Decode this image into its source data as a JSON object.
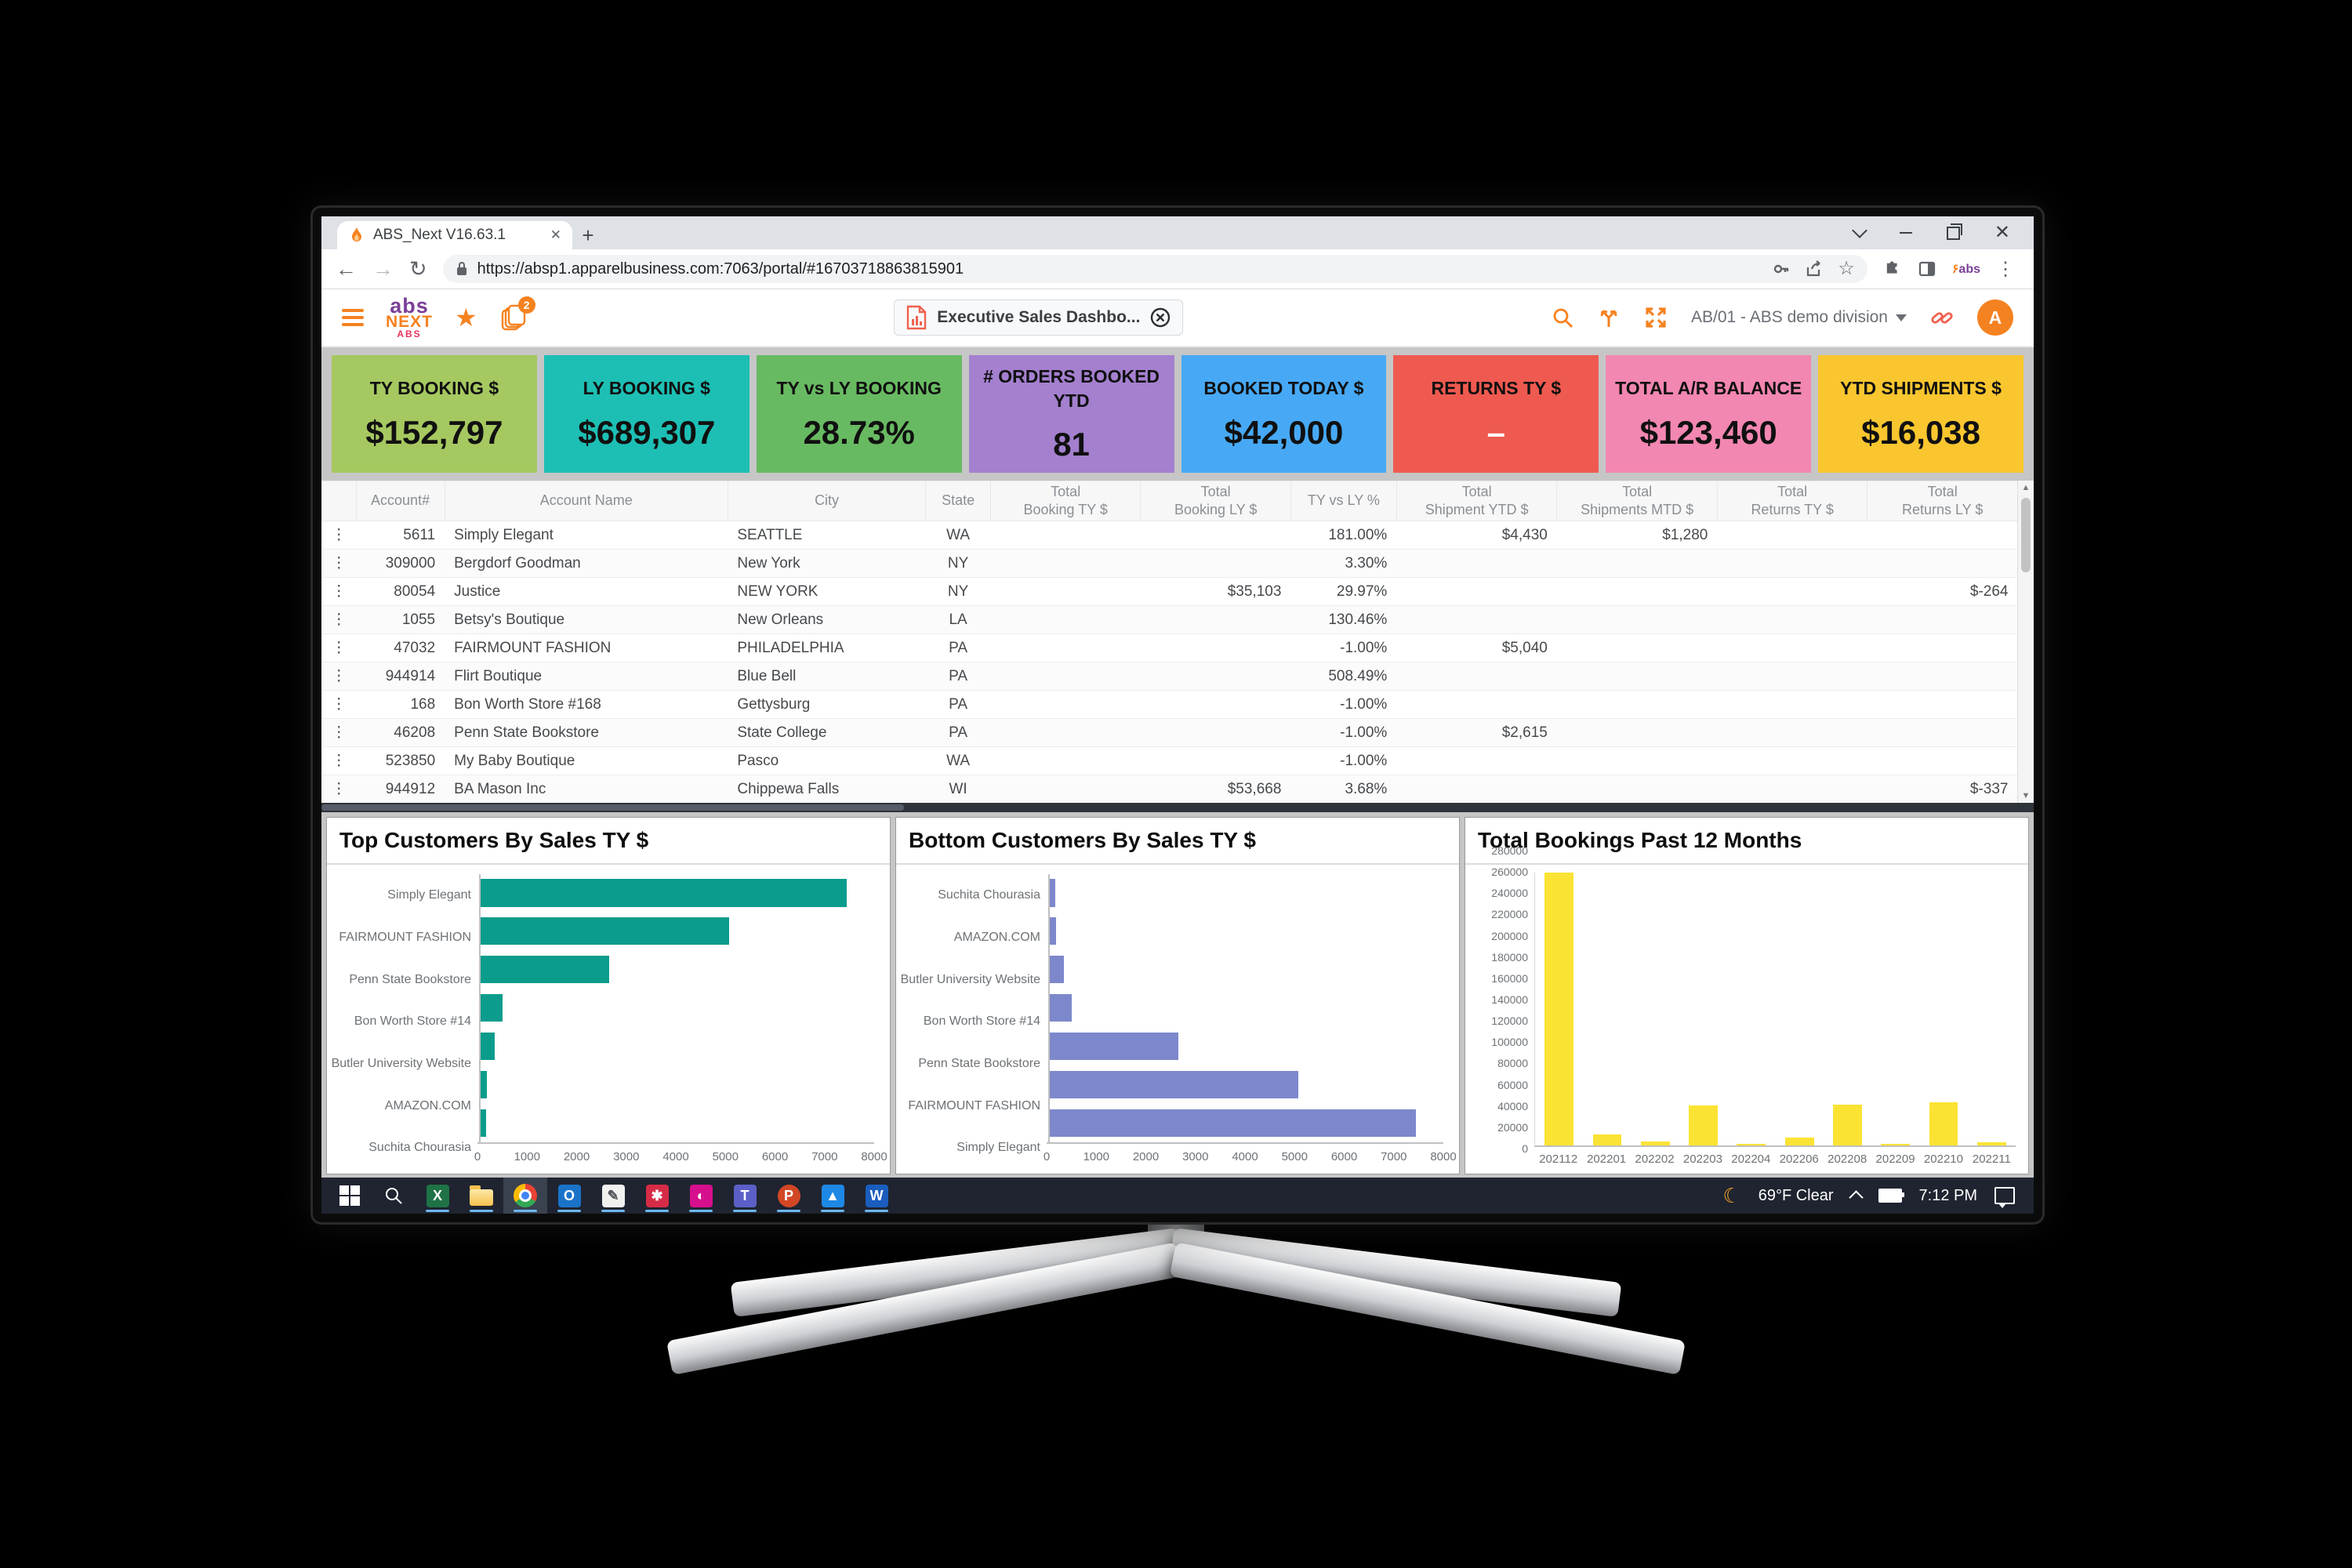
{
  "browser": {
    "tab_title": "ABS_Next V16.63.1",
    "url": "https://absp1.apparelbusiness.com:7063/portal/#16703718863815901"
  },
  "header": {
    "notification_badge": "2",
    "dashboard_chip_label": "Executive Sales Dashbo...",
    "division_selector": "AB/01 - ABS demo division",
    "avatar_initial": "A"
  },
  "kpis": [
    {
      "label": "TY BOOKING $",
      "value": "$152,797",
      "color": "#a6c860"
    },
    {
      "label": "LY BOOKING $",
      "value": "$689,307",
      "color": "#1dbfb4"
    },
    {
      "label": "TY vs LY BOOKING",
      "value": "28.73%",
      "color": "#68ba62"
    },
    {
      "label": "# ORDERS BOOKED\nYTD",
      "value": "81",
      "color": "#a480cf"
    },
    {
      "label": "BOOKED TODAY $",
      "value": "$42,000",
      "color": "#47a9f5"
    },
    {
      "label": "RETURNS TY $",
      "value": "–",
      "color": "#ef5a50",
      "value_color": "#ffffff"
    },
    {
      "label": "TOTAL A/R BALANCE",
      "value": "$123,460",
      "color": "#f287b1"
    },
    {
      "label": "YTD SHIPMENTS $",
      "value": "$16,038",
      "color": "#f9c62f"
    }
  ],
  "table": {
    "columns": [
      "Account#",
      "Account Name",
      "City",
      "State",
      "Total\nBooking TY $",
      "Total\nBooking LY $",
      "TY vs LY %",
      "Total\nShipment YTD $",
      "Total\nShipments MTD $",
      "Total\nReturns TY $",
      "Total\nReturns LY $"
    ],
    "rows": [
      [
        "5611",
        "Simply Elegant",
        "SEATTLE",
        "WA",
        "",
        "",
        "181.00%",
        "$4,430",
        "$1,280",
        "",
        ""
      ],
      [
        "309000",
        "Bergdorf Goodman",
        "New York",
        "NY",
        "",
        "",
        "3.30%",
        "",
        "",
        "",
        ""
      ],
      [
        "80054",
        "Justice",
        "NEW YORK",
        "NY",
        "",
        "$35,103",
        "29.97%",
        "",
        "",
        "",
        "$-264"
      ],
      [
        "1055",
        "Betsy's Boutique",
        "New Orleans",
        "LA",
        "",
        "",
        "130.46%",
        "",
        "",
        "",
        ""
      ],
      [
        "47032",
        "FAIRMOUNT FASHION",
        "PHILADELPHIA",
        "PA",
        "",
        "",
        "-1.00%",
        "$5,040",
        "",
        "",
        ""
      ],
      [
        "944914",
        "Flirt Boutique",
        "Blue Bell",
        "PA",
        "",
        "",
        "508.49%",
        "",
        "",
        "",
        ""
      ],
      [
        "168",
        "Bon Worth Store #168",
        "Gettysburg",
        "PA",
        "",
        "",
        "-1.00%",
        "",
        "",
        "",
        ""
      ],
      [
        "46208",
        "Penn State Bookstore",
        "State College",
        "PA",
        "",
        "",
        "-1.00%",
        "$2,615",
        "",
        "",
        ""
      ],
      [
        "523850",
        "My Baby Boutique",
        "Pasco",
        "WA",
        "",
        "",
        "-1.00%",
        "",
        "",
        "",
        ""
      ],
      [
        "944912",
        "BA Mason Inc",
        "Chippewa Falls",
        "WI",
        "",
        "$53,668",
        "3.68%",
        "",
        "",
        "",
        "$-337"
      ]
    ]
  },
  "chart_data": [
    {
      "type": "bar",
      "orientation": "horizontal",
      "title": "Top Customers By Sales TY $",
      "categories": [
        "Simply Elegant",
        "FAIRMOUNT FASHION",
        "Penn State Bookstore",
        "Bon Worth Store #14",
        "Butler University Website",
        "AMAZON.COM",
        "Suchita Chourasia"
      ],
      "values": [
        7450,
        5050,
        2620,
        450,
        290,
        130,
        110
      ],
      "xlim": [
        0,
        8000
      ],
      "xticks": [
        0,
        1000,
        2000,
        3000,
        4000,
        5000,
        6000,
        7000,
        8000
      ],
      "bar_color": "#0c9c8c",
      "grid": false,
      "legend": "none"
    },
    {
      "type": "bar",
      "orientation": "horizontal",
      "title": "Bottom Customers By Sales TY $",
      "categories": [
        "Suchita Chourasia",
        "AMAZON.COM",
        "Butler University Website",
        "Bon Worth Store #14",
        "Penn State Bookstore",
        "FAIRMOUNT FASHION",
        "Simply Elegant"
      ],
      "values": [
        110,
        130,
        290,
        450,
        2620,
        5050,
        7450
      ],
      "xlim": [
        0,
        8000
      ],
      "xticks": [
        0,
        1000,
        2000,
        3000,
        4000,
        5000,
        6000,
        7000,
        8000
      ],
      "bar_color": "#7d88cc",
      "grid": false,
      "legend": "none"
    },
    {
      "type": "bar",
      "orientation": "vertical",
      "title": "Total Bookings Past 12 Months",
      "categories": [
        "202112",
        "202201",
        "202202",
        "202203",
        "202204",
        "202206",
        "202208",
        "202209",
        "202210",
        "202211"
      ],
      "values": [
        280000,
        11000,
        4000,
        41000,
        2000,
        8000,
        42000,
        2000,
        44000,
        3500
      ],
      "ylim": [
        0,
        280000
      ],
      "ytick_step": 20000,
      "bar_color": "#fbe334",
      "grid": false,
      "legend": "none"
    }
  ],
  "taskbar": {
    "icons": [
      {
        "name": "start-button",
        "kind": "start"
      },
      {
        "name": "taskbar-search",
        "kind": "search"
      },
      {
        "name": "excel",
        "kind": "letter",
        "glyph": "X",
        "color": "#1f7246",
        "running": true
      },
      {
        "name": "file-explorer",
        "kind": "folder",
        "running": true
      },
      {
        "name": "chrome",
        "kind": "chrome",
        "running": true,
        "active": true
      },
      {
        "name": "outlook",
        "kind": "letter",
        "glyph": "O",
        "color": "#1a73c9",
        "running": true
      },
      {
        "name": "onenote",
        "kind": "letter",
        "glyph": "✎",
        "color": "#f1f1f1",
        "fg": "#50555a",
        "running": true
      },
      {
        "name": "fan-app",
        "kind": "letter",
        "glyph": "✱",
        "color": "#d62b47",
        "running": true
      },
      {
        "name": "power-bi-mobile",
        "kind": "letter",
        "glyph": "◐",
        "color": "#d60f8c",
        "running": true
      },
      {
        "name": "teams",
        "kind": "letter",
        "glyph": "T",
        "color": "#5b5fc7",
        "running": true
      },
      {
        "name": "powerpoint",
        "kind": "letter",
        "glyph": "P",
        "color": "#d24726",
        "round": true,
        "running": true
      },
      {
        "name": "photos",
        "kind": "letter",
        "glyph": "▲",
        "color": "#1e88e5",
        "running": true
      },
      {
        "name": "word",
        "kind": "letter",
        "glyph": "W",
        "color": "#1a5dbe",
        "running": true
      }
    ],
    "weather": "69°F  Clear",
    "time": "7:12 PM"
  }
}
